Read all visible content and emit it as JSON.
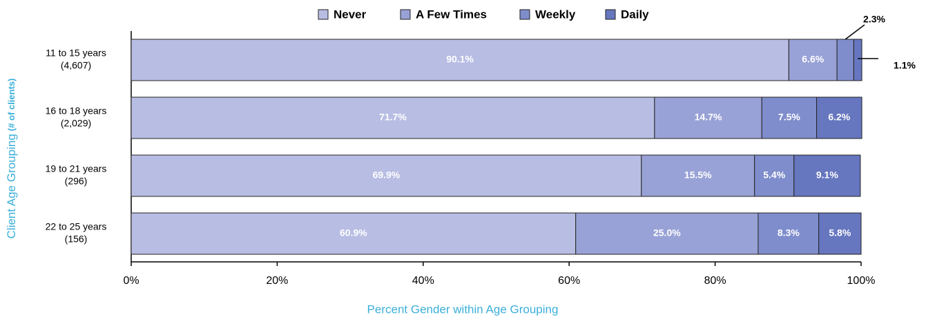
{
  "chart_data": {
    "type": "stacked_barh",
    "y_label": "Client Age Grouping",
    "y_label_note": "(# of clients)",
    "x_label": "Percent Gender within Age Grouping",
    "categories": [
      [
        "11 to 15 years",
        "(4,607)"
      ],
      [
        "16 to 18 years",
        "(2,029)"
      ],
      [
        "19 to 21 years",
        "(296)"
      ],
      [
        "22 to 25 years",
        "(156)"
      ]
    ],
    "series": [
      {
        "name": "Never",
        "color": "#b8bde3",
        "values": [
          90.1,
          71.7,
          69.9,
          60.9
        ],
        "value_labels": [
          "90.1%",
          "71.7%",
          "69.9%",
          "60.9%"
        ]
      },
      {
        "name": "A Few Times",
        "color": "#99a2d6",
        "values": [
          6.6,
          14.7,
          15.5,
          25.0
        ],
        "value_labels": [
          "6.6%",
          "14.7%",
          "15.5%",
          "25.0%"
        ]
      },
      {
        "name": "Weekly",
        "color": "#7f8dcc",
        "values": [
          2.3,
          7.5,
          5.4,
          8.3
        ],
        "value_labels": [
          "2.3%",
          "7.5%",
          "5.4%",
          "8.3%"
        ]
      },
      {
        "name": "Daily",
        "color": "#6676bf",
        "values": [
          1.1,
          6.2,
          9.1,
          5.8
        ],
        "value_labels": [
          "1.1%",
          "6.2%",
          "9.1%",
          "5.8%"
        ]
      }
    ],
    "xlim": [
      0,
      100
    ],
    "xticks": [
      {
        "value": 0,
        "label": "0%"
      },
      {
        "value": 20,
        "label": "20%"
      },
      {
        "value": 40,
        "label": "40%"
      },
      {
        "value": 60,
        "label": "60%"
      },
      {
        "value": 80,
        "label": "80%"
      },
      {
        "value": 100,
        "label": "100%"
      }
    ],
    "legend": "top"
  }
}
